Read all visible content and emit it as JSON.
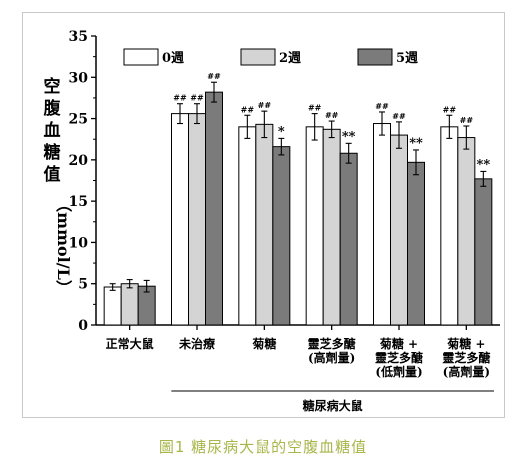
{
  "caption": "圖1 糖尿病大鼠的空腹血糖值",
  "colors": {
    "week0": "#ffffff",
    "week2": "#d4d4d4",
    "week5": "#7b7b7b",
    "axis": "#000000",
    "caption": "#a8b64a"
  },
  "chart_data": {
    "type": "bar",
    "ylabel": "空腹血糖值 (mmol/L)",
    "ylabel_chars": [
      "空",
      "腹",
      "血",
      "糖",
      "值"
    ],
    "ylabel_unit": "（mmol/L）",
    "ylim": [
      0,
      35
    ],
    "yticks": [
      "0",
      "5",
      "10",
      "15",
      "20",
      "25",
      "30",
      "35"
    ],
    "categories": [
      [
        "正常大鼠"
      ],
      [
        "未治療"
      ],
      [
        "菊糖"
      ],
      [
        "靈芝多醣",
        "(高劑量)"
      ],
      [
        "菊糖 +",
        "靈芝多醣",
        "(低劑量)"
      ],
      [
        "菊糖 +",
        "靈芝多醣",
        "(高劑量)"
      ]
    ],
    "group_label": "糖尿病大鼠",
    "legend_position": "top",
    "series": [
      {
        "name": "0週",
        "values": [
          4.6,
          25.6,
          24.0,
          24.0,
          24.4,
          24.0
        ],
        "errors": [
          0.4,
          1.2,
          1.4,
          1.6,
          1.4,
          1.4
        ],
        "annotations": [
          "",
          "##",
          "##",
          "##",
          "##",
          "##"
        ]
      },
      {
        "name": "2週",
        "values": [
          5.0,
          25.6,
          24.3,
          23.7,
          23.0,
          22.7
        ],
        "errors": [
          0.5,
          1.2,
          1.6,
          1.0,
          1.6,
          1.4
        ],
        "annotations": [
          "",
          "##",
          "##",
          "##",
          "##",
          "##"
        ]
      },
      {
        "name": "5週",
        "values": [
          4.7,
          28.2,
          21.6,
          20.8,
          19.7,
          17.7
        ],
        "errors": [
          0.7,
          1.2,
          1.0,
          1.2,
          1.5,
          0.9
        ],
        "annotations": [
          "",
          "##",
          "*",
          "**",
          "**",
          "**"
        ]
      }
    ]
  }
}
